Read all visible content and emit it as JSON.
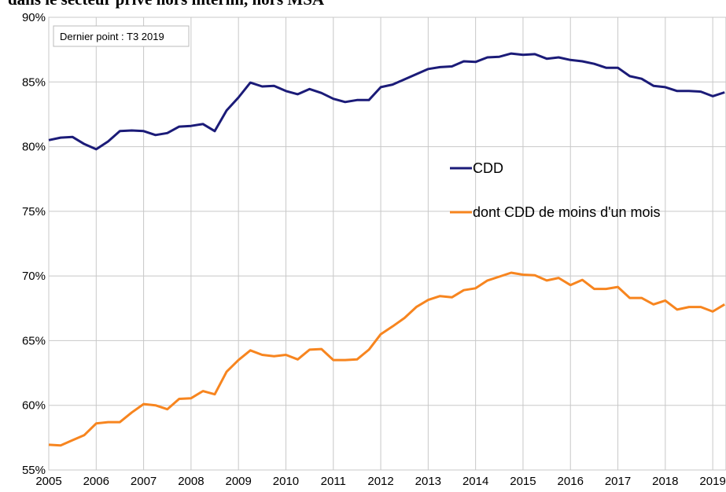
{
  "chart_data": {
    "type": "line",
    "title": "dans le secteur privé hors intérim, hors MSA",
    "annotation": "Dernier point : T3 2019",
    "x": [
      2005,
      2005.25,
      2005.5,
      2005.75,
      2006,
      2006.25,
      2006.5,
      2006.75,
      2007,
      2007.25,
      2007.5,
      2007.75,
      2008,
      2008.25,
      2008.5,
      2008.75,
      2009,
      2009.25,
      2009.5,
      2009.75,
      2010,
      2010.25,
      2010.5,
      2010.75,
      2011,
      2011.25,
      2011.5,
      2011.75,
      2012,
      2012.25,
      2012.5,
      2012.75,
      2013,
      2013.25,
      2013.5,
      2013.75,
      2014,
      2014.25,
      2014.5,
      2014.75,
      2015,
      2015.25,
      2015.5,
      2015.75,
      2016,
      2016.25,
      2016.5,
      2016.75,
      2017,
      2017.25,
      2017.5,
      2017.75,
      2018,
      2018.25,
      2018.5,
      2018.75,
      2019,
      2019.25
    ],
    "series": [
      {
        "name": "CDD",
        "color": "#1b1b78",
        "values": [
          80.5,
          80.7,
          80.75,
          80.2,
          79.8,
          80.4,
          81.2,
          81.25,
          81.2,
          80.9,
          81.05,
          81.55,
          81.6,
          81.75,
          81.2,
          82.8,
          83.8,
          84.95,
          84.65,
          84.7,
          84.3,
          84.05,
          84.45,
          84.15,
          83.7,
          83.45,
          83.6,
          83.6,
          84.6,
          84.8,
          85.2,
          85.6,
          86.0,
          86.15,
          86.2,
          86.6,
          86.55,
          86.9,
          86.95,
          87.2,
          87.1,
          87.15,
          86.8,
          86.9,
          86.7,
          86.6,
          86.4,
          86.1,
          86.1,
          85.45,
          85.25,
          84.7,
          84.6,
          84.3,
          84.3,
          84.25,
          83.9,
          84.2
        ]
      },
      {
        "name": "dont CDD de moins d'un mois",
        "color": "#f7851f",
        "values": [
          56.95,
          56.9,
          57.3,
          57.7,
          58.6,
          58.7,
          58.7,
          59.45,
          60.1,
          60.0,
          59.7,
          60.5,
          60.55,
          61.1,
          60.85,
          62.6,
          63.5,
          64.25,
          63.9,
          63.8,
          63.9,
          63.55,
          64.3,
          64.35,
          63.5,
          63.5,
          63.55,
          64.3,
          65.5,
          66.1,
          66.75,
          67.6,
          68.15,
          68.45,
          68.35,
          68.9,
          69.05,
          69.65,
          69.95,
          70.25,
          70.1,
          70.05,
          69.65,
          69.85,
          69.3,
          69.7,
          69.0,
          69.0,
          69.15,
          68.3,
          68.3,
          67.8,
          68.1,
          67.4,
          67.6,
          67.6,
          67.25,
          67.8
        ]
      }
    ],
    "xlim": [
      2005,
      2019.28
    ],
    "xticks": [
      2005,
      2006,
      2007,
      2008,
      2009,
      2010,
      2011,
      2012,
      2013,
      2014,
      2015,
      2016,
      2017,
      2018,
      2019
    ],
    "ylim": [
      55,
      90
    ],
    "yticks": [
      {
        "value": 55,
        "label": "55%"
      },
      {
        "value": 60,
        "label": "60%"
      },
      {
        "value": 65,
        "label": "65%"
      },
      {
        "value": 70,
        "label": "70%"
      },
      {
        "value": 75,
        "label": "75%"
      },
      {
        "value": 80,
        "label": "80%"
      },
      {
        "value": 85,
        "label": "85%"
      },
      {
        "value": 90,
        "label": "90%"
      }
    ],
    "grid": true
  }
}
